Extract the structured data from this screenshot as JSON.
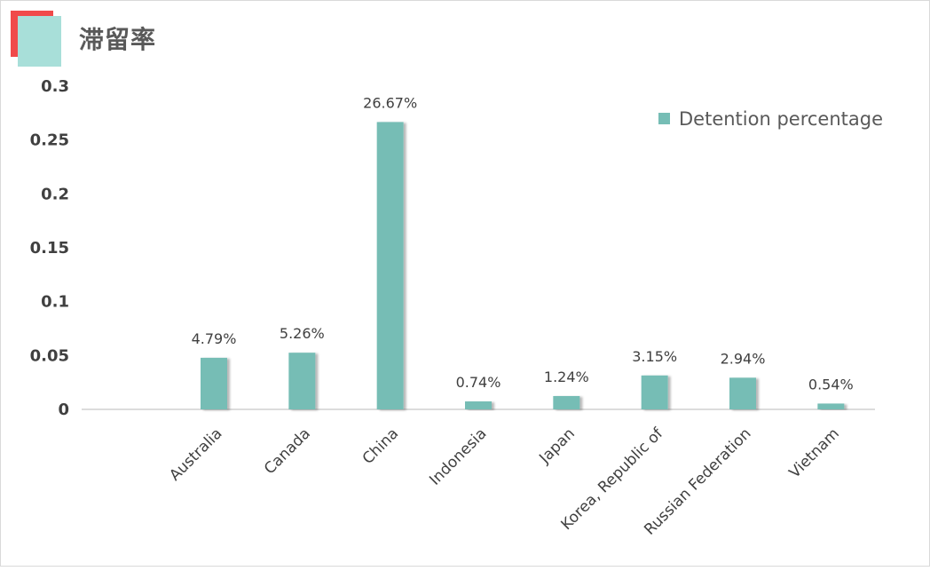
{
  "title": "滞留率",
  "colors": {
    "bar": "#76bdb5",
    "logo_red": "#f04a4a",
    "logo_teal": "#a8dfd9"
  },
  "chart_data": {
    "type": "bar",
    "title": "滞留率",
    "categories": [
      "",
      "Australia",
      "Canada",
      "China",
      "Indonesia",
      "Japan",
      "Korea, Republic of",
      "Russian Federation",
      "Vietnam"
    ],
    "series": [
      {
        "name": "Detention percentage",
        "values": [
          null,
          0.0479,
          0.0526,
          0.2667,
          0.0074,
          0.0124,
          0.0315,
          0.0294,
          0.0054
        ],
        "labels": [
          "",
          "4.79%",
          "5.26%",
          "26.67%",
          "0.74%",
          "1.24%",
          "3.15%",
          "2.94%",
          "0.54%"
        ]
      }
    ],
    "yticks": [
      "0",
      "0.05",
      "0.1",
      "0.15",
      "0.2",
      "0.25",
      "0.3"
    ],
    "ylim": [
      0,
      0.3
    ],
    "legend": "top-right",
    "grid": false
  }
}
